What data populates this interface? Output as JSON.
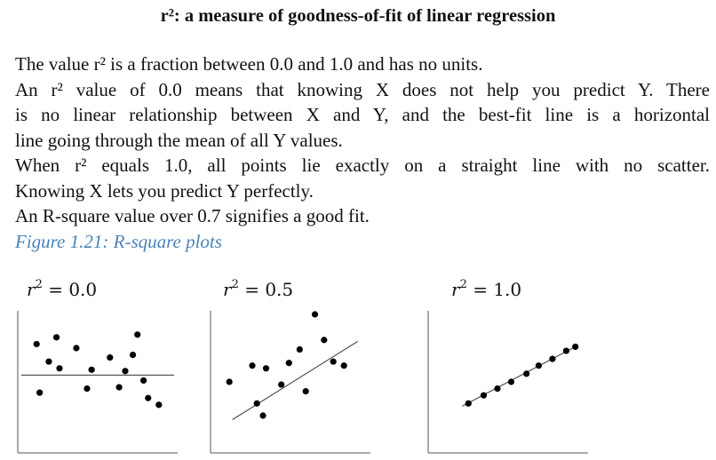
{
  "heading": "r²: a measure of goodness-of-fit of linear regression",
  "paragraphs": [
    "The value r² is a fraction between 0.0 and 1.0 and has no units.",
    "An r² value of 0.0 means that knowing X does not help you predict Y. There",
    "is no linear relationship between X and Y, and the best-fit line is a horizontal",
    "line going through the mean of all Y values.",
    "When r² equals 1.0, all points lie exactly on a straight line with no scatter.",
    "Knowing X lets you predict Y perfectly.",
    "An R-square value over 0.7 signifies a good fit."
  ],
  "figure_caption": "Figure 1.21: R-square plots",
  "colors": {
    "caption": "#4a83b8",
    "text": "#111111",
    "points": "#000000"
  },
  "chart_data": [
    {
      "type": "scatter",
      "label_symbol": "r",
      "label_exp": "2",
      "label_value": "= 0.0",
      "line": {
        "x": [
          0,
          10
        ],
        "y": [
          5.5,
          5.5
        ]
      },
      "x": [
        1.0,
        2.3,
        1.8,
        3.6,
        5.8,
        7.3,
        6.4,
        8.3,
        2.5,
        4.6,
        6.8,
        8.0,
        1.2,
        4.3,
        7.6,
        9.0
      ],
      "y": [
        7.8,
        8.3,
        6.5,
        7.5,
        6.8,
        7.0,
        4.6,
        3.8,
        6.0,
        5.9,
        5.8,
        5.1,
        4.2,
        4.5,
        8.5,
        3.3
      ]
    },
    {
      "type": "scatter",
      "label_symbol": "r",
      "label_exp": "2",
      "label_value": "= 0.5",
      "line": {
        "x": [
          1.2,
          9.4
        ],
        "y": [
          2.2,
          8.0
        ]
      },
      "x": [
        1.0,
        2.5,
        3.4,
        4.9,
        5.6,
        7.2,
        7.8,
        6.6,
        4.4,
        2.8,
        3.2,
        6.0,
        8.5
      ],
      "y": [
        5.0,
        6.2,
        6.0,
        6.4,
        7.4,
        8.1,
        6.5,
        10.0,
        4.8,
        3.4,
        2.5,
        4.3,
        6.2
      ]
    },
    {
      "type": "scatter",
      "label_symbol": "r",
      "label_exp": "2",
      "label_value": "= 1.0",
      "line": {
        "x": [
          2.0,
          9.4
        ],
        "y": [
          3.2,
          7.6
        ]
      },
      "x": [
        2.4,
        3.4,
        4.3,
        5.2,
        6.2,
        7.0,
        7.9,
        8.8,
        9.4
      ],
      "y": [
        3.4,
        4.0,
        4.5,
        5.0,
        5.6,
        6.2,
        6.7,
        7.3,
        7.6
      ]
    }
  ]
}
